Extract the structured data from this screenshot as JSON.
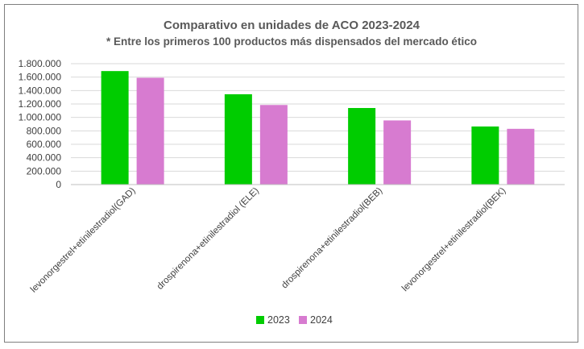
{
  "chart_data": {
    "type": "bar",
    "title": "Comparativo en unidades de ACO 2023-2024",
    "subtitle": "* Entre los primeros 100 productos más dispensados del mercado ético",
    "categories": [
      "levonorgestrel+etinilestradiol(GAD)",
      "drospirenona+etinilestradiol (ELE)",
      "drospirenona+etinilestradiol(BEB)",
      "levonorgestrel+etinilestradiol(BEK)"
    ],
    "series": [
      {
        "name": "2023",
        "color": "#00cc00",
        "values": [
          1690000,
          1345000,
          1140000,
          865000
        ]
      },
      {
        "name": "2024",
        "color": "#d77bd0",
        "values": [
          1590000,
          1185000,
          955000,
          830000
        ]
      }
    ],
    "ylim": [
      0,
      1800000
    ],
    "yticks": [
      "0",
      "200.000",
      "400.000",
      "600.000",
      "800.000",
      "1.000.000",
      "1.200.000",
      "1.400.000",
      "1.600.000",
      "1.800.000"
    ],
    "grid": true,
    "legend_position": "bottom"
  }
}
